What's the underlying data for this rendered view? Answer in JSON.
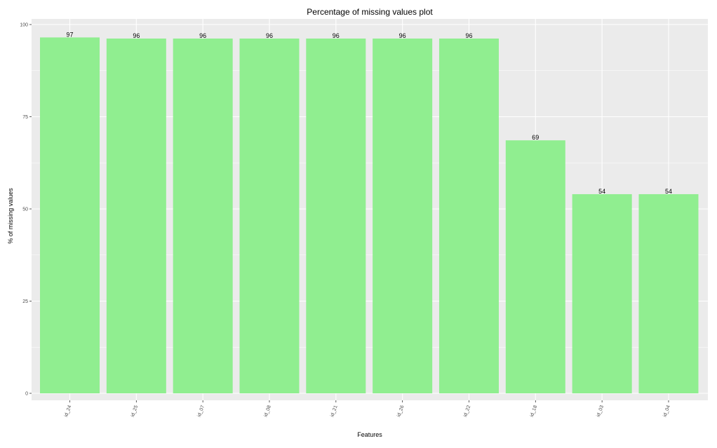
{
  "chart_data": {
    "type": "bar",
    "title": "Percentage of missing values plot",
    "xlabel": "Features",
    "ylabel": "% of missing values",
    "categories": [
      "id_24",
      "id_25",
      "id_07",
      "id_08",
      "id_21",
      "id_26",
      "id_22",
      "id_18",
      "id_03",
      "id_04"
    ],
    "values": [
      96.5,
      96.2,
      96.2,
      96.2,
      96.2,
      96.2,
      96.2,
      68.6,
      54.0,
      54.0
    ],
    "data_labels": [
      "97",
      "96",
      "96",
      "96",
      "96",
      "96",
      "96",
      "69",
      "54",
      "54"
    ],
    "ylim": [
      0,
      100
    ],
    "yticks": [
      0,
      25,
      50,
      75,
      100
    ],
    "grid": true,
    "bar_color": "#90EE90",
    "panel_background": "#EBEBEB",
    "grid_color": "#FFFFFF"
  }
}
